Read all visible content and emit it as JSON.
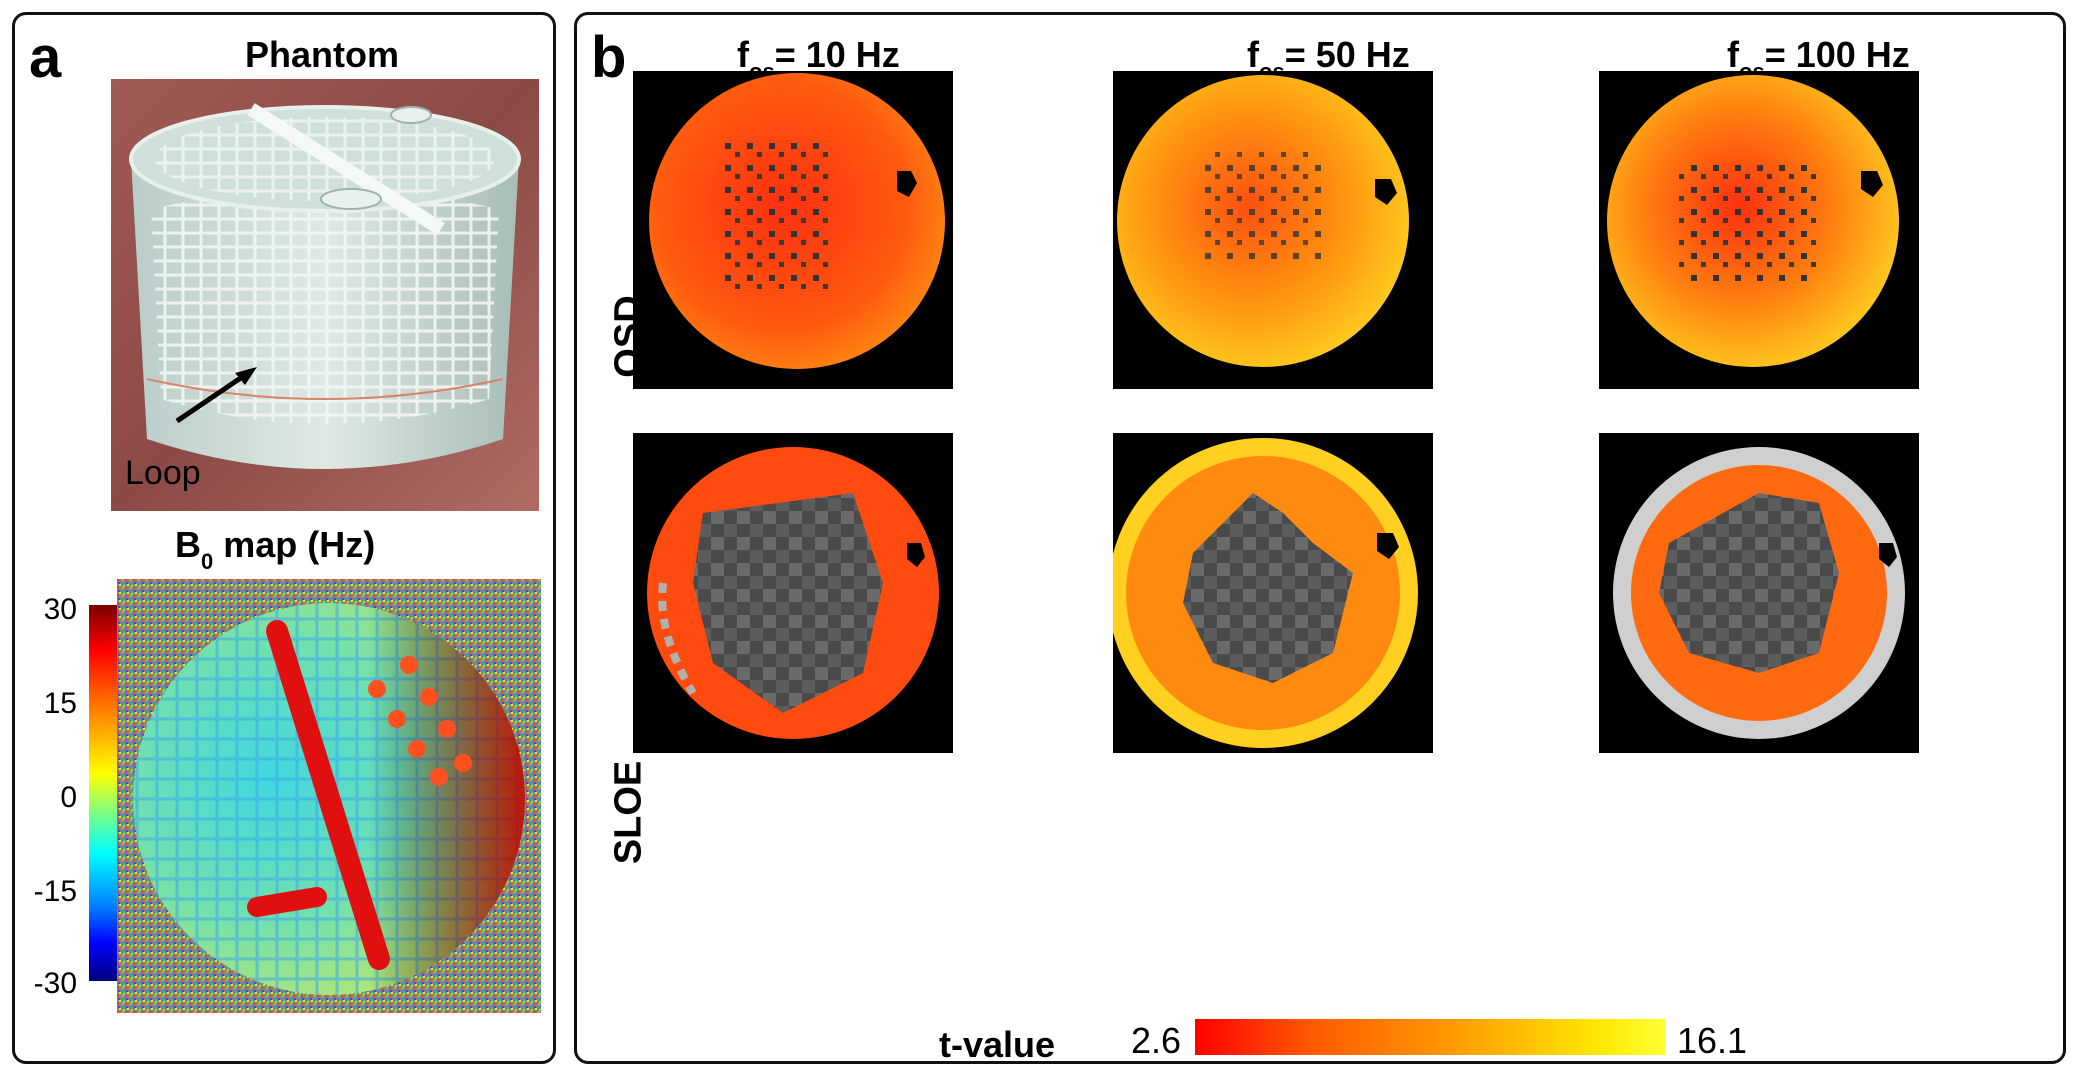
{
  "panel_a": {
    "letter": "a",
    "phantom_title": "Phantom",
    "loop_label": "Loop",
    "b0_title_main": "B",
    "b0_title_sub": "0",
    "b0_title_rest": " map (Hz)",
    "b0_ticks": [
      "30",
      "15",
      "0",
      "-15",
      "-30"
    ]
  },
  "panel_b": {
    "letter": "b",
    "columns": [
      {
        "f": "f",
        "sub": "os",
        "rest": "= 10 Hz"
      },
      {
        "f": "f",
        "sub": "os",
        "rest": "= 50 Hz"
      },
      {
        "f": "f",
        "sub": "os",
        "rest": "= 100 Hz"
      }
    ],
    "rows": [
      "OSD",
      "SLOE"
    ],
    "tvalue_label": "t-value",
    "tvalue_min": "2.6",
    "tvalue_max": "16.1"
  },
  "colors": {
    "frame": "#111111",
    "background": "#ffffff",
    "map_bg": "#000000"
  }
}
